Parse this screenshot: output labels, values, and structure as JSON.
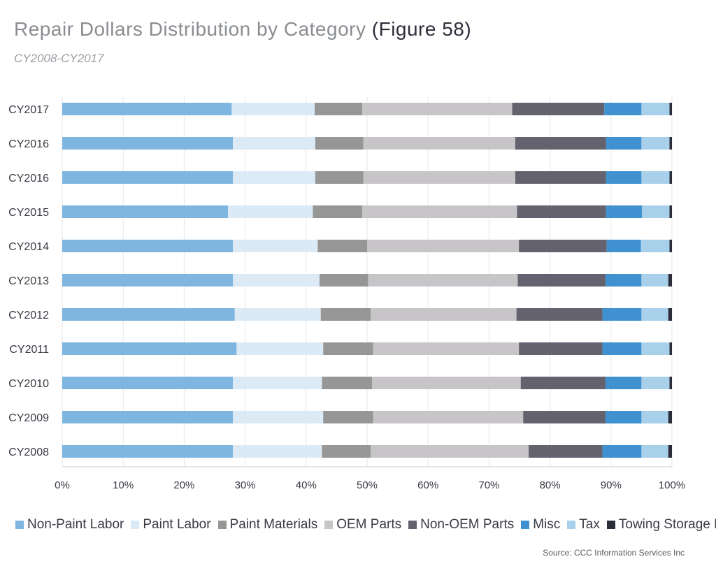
{
  "title": "Repair Dollars Distribution by Category",
  "title_figure": "(Figure 58)",
  "subtitle": "CY2008-CY2017",
  "source": "Source:  CCC Information Services Inc",
  "colors": {
    "Non-Paint Labor": "#7fb6df",
    "Paint Labor": "#dceaf6",
    "Paint Materials": "#969696",
    "OEM Parts": "#c8c5c9",
    "Non-OEM Parts": "#63626e",
    "Misc": "#3f91cf",
    "Tax": "#a9d0ea",
    "Towing Storage EPC": "#2b2d3b"
  },
  "chart_data": {
    "type": "bar",
    "orientation": "horizontal",
    "stacked": true,
    "categories": [
      "CY2017",
      "CY2016",
      "CY2016",
      "CY2015",
      "CY2014",
      "CY2013",
      "CY2012",
      "CY2011",
      "CY2010",
      "CY2009",
      "CY2008"
    ],
    "series": [
      {
        "name": "Non-Paint Labor",
        "values": [
          27.8,
          28.0,
          28.0,
          27.2,
          28.0,
          28.0,
          28.3,
          28.6,
          28.0,
          28.0,
          28.0
        ]
      },
      {
        "name": "Paint Labor",
        "values": [
          13.6,
          13.5,
          13.5,
          13.9,
          13.9,
          14.2,
          14.1,
          14.2,
          14.6,
          14.8,
          14.6
        ]
      },
      {
        "name": "Paint Materials",
        "values": [
          7.8,
          7.9,
          7.9,
          8.1,
          8.1,
          8.0,
          8.2,
          8.2,
          8.2,
          8.2,
          8.0
        ]
      },
      {
        "name": "OEM Parts",
        "values": [
          24.6,
          24.9,
          24.9,
          25.4,
          24.9,
          24.5,
          23.9,
          23.9,
          24.4,
          24.6,
          25.9
        ]
      },
      {
        "name": "Non-OEM Parts",
        "values": [
          15.1,
          14.9,
          14.9,
          14.6,
          14.4,
          14.4,
          14.1,
          13.7,
          13.9,
          13.5,
          12.1
        ]
      },
      {
        "name": "Misc",
        "values": [
          6.1,
          5.8,
          5.8,
          5.9,
          5.6,
          5.9,
          6.4,
          6.4,
          5.9,
          5.9,
          6.4
        ]
      },
      {
        "name": "Tax",
        "values": [
          4.6,
          4.6,
          4.6,
          4.5,
          4.7,
          4.4,
          4.4,
          4.6,
          4.6,
          4.4,
          4.4
        ]
      },
      {
        "name": "Towing Storage EPC",
        "values": [
          0.4,
          0.4,
          0.4,
          0.4,
          0.4,
          0.6,
          0.6,
          0.4,
          0.4,
          0.6,
          0.6
        ]
      }
    ],
    "xticks": [
      "0%",
      "10%",
      "20%",
      "30%",
      "40%",
      "50%",
      "60%",
      "70%",
      "80%",
      "90%",
      "100%"
    ],
    "xlim": [
      0,
      100
    ],
    "grid": "vertical",
    "legend": "bottom"
  }
}
